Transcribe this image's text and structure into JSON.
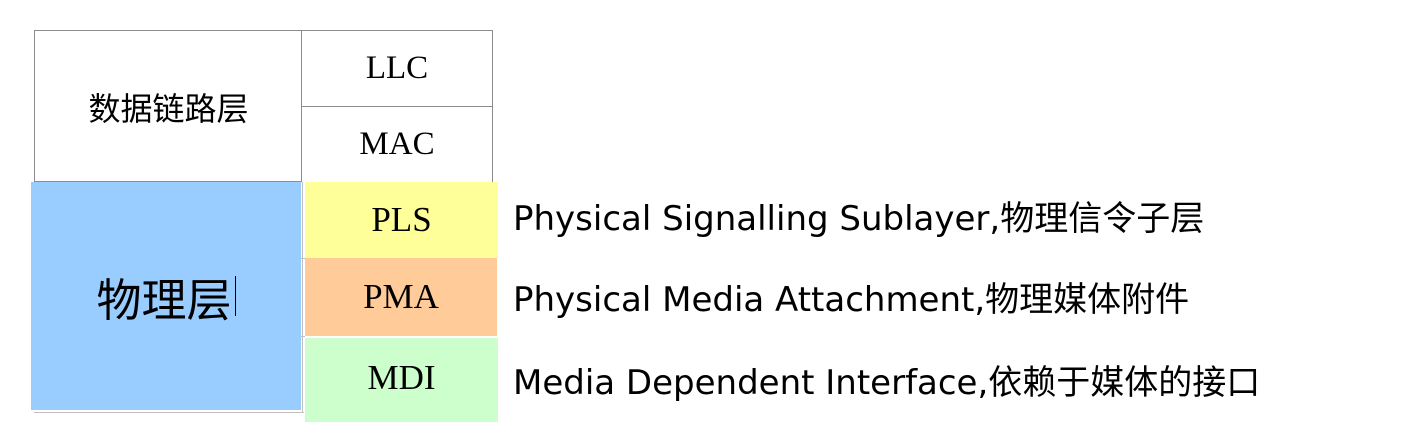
{
  "data_link_layer": {
    "label": "数据链路层",
    "sublayers": [
      "LLC",
      "MAC"
    ]
  },
  "physical_layer": {
    "label": "物理层",
    "sublayers": [
      {
        "abbr": "PLS",
        "description": "Physical Signalling Sublayer,物理信令子层",
        "color": "#ffff99"
      },
      {
        "abbr": "PMA",
        "description": "Physical Media Attachment,物理媒体附件",
        "color": "#ffcc99"
      },
      {
        "abbr": "MDI",
        "description": "Media Dependent Interface,依赖于媒体的接口",
        "color": "#ccffcc"
      }
    ],
    "color": "#99ccff"
  }
}
